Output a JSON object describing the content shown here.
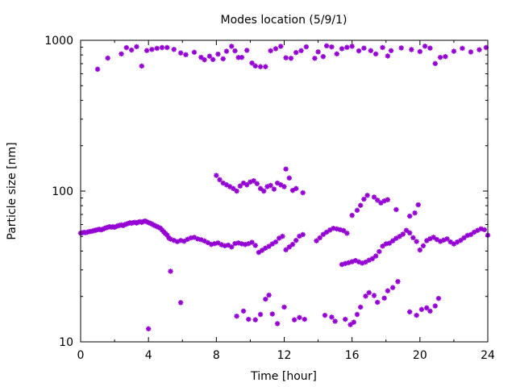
{
  "chart_data": {
    "type": "scatter",
    "title": "Modes location (5/9/1)",
    "xlabel": "Time [hour]",
    "ylabel": "Particle size [nm]",
    "xlim": [
      0,
      24
    ],
    "ylim": [
      10,
      1000
    ],
    "y_scale": "log",
    "grid": false,
    "marker": "asterisk",
    "color": "#9400d3",
    "x_ticks": [
      "0",
      "4",
      "8",
      "12",
      "16",
      "20",
      "24"
    ],
    "y_ticks": [
      "10",
      "100",
      "1000"
    ],
    "series": [
      {
        "points": [
          [
            0.0,
            52.6
          ],
          [
            0.1,
            52.9
          ],
          [
            0.2,
            53.2
          ],
          [
            0.3,
            53.0
          ],
          [
            0.4,
            53.4
          ],
          [
            0.5,
            53.8
          ],
          [
            0.6,
            54.0
          ],
          [
            0.7,
            54.3
          ],
          [
            0.8,
            54.7
          ],
          [
            0.9,
            55.1
          ],
          [
            1.0,
            55.4
          ],
          [
            1.1,
            55.8
          ],
          [
            1.2,
            55.3
          ],
          [
            1.3,
            55.8
          ],
          [
            1.4,
            56.5
          ],
          [
            1.5,
            57.1
          ],
          [
            1.6,
            57.4
          ],
          [
            1.7,
            58.0
          ],
          [
            1.8,
            57.7
          ],
          [
            1.9,
            57.9
          ],
          [
            2.0,
            57.5
          ],
          [
            2.1,
            58.2
          ],
          [
            2.2,
            58.9
          ],
          [
            2.3,
            59.2
          ],
          [
            2.4,
            59.7
          ],
          [
            2.5,
            59.0
          ],
          [
            2.6,
            59.9
          ],
          [
            2.7,
            60.4
          ],
          [
            2.8,
            61.0
          ],
          [
            2.9,
            61.6
          ],
          [
            3.0,
            61.2
          ],
          [
            3.1,
            61.8
          ],
          [
            3.2,
            62.0
          ],
          [
            3.3,
            61.4
          ],
          [
            3.4,
            62.3
          ],
          [
            3.5,
            62.7
          ],
          [
            3.6,
            62.0
          ],
          [
            3.7,
            62.9
          ],
          [
            3.8,
            63.3
          ],
          [
            3.9,
            62.6
          ],
          [
            4.0,
            61.8
          ],
          [
            4.1,
            61.2
          ],
          [
            4.2,
            60.5
          ],
          [
            4.3,
            59.6
          ],
          [
            4.4,
            58.8
          ],
          [
            4.5,
            58.2
          ],
          [
            4.6,
            57.4
          ],
          [
            4.7,
            56.8
          ],
          [
            4.8,
            55.2
          ],
          [
            4.9,
            53.7
          ],
          [
            5.0,
            52.3
          ],
          [
            5.1,
            51.0
          ],
          [
            5.2,
            48.9
          ],
          [
            5.3,
            48.0
          ],
          [
            5.5,
            47.1
          ],
          [
            5.7,
            46.2
          ],
          [
            5.9,
            47.0
          ],
          [
            6.1,
            46.5
          ],
          [
            6.3,
            47.9
          ],
          [
            6.5,
            48.9
          ],
          [
            6.7,
            49.3
          ],
          [
            6.9,
            48.2
          ],
          [
            7.1,
            47.6
          ],
          [
            7.3,
            46.7
          ],
          [
            7.5,
            45.5
          ],
          [
            7.7,
            44.3
          ],
          [
            7.9,
            44.8
          ],
          [
            8.1,
            45.3
          ],
          [
            8.3,
            44.1
          ],
          [
            8.5,
            43.4
          ],
          [
            8.7,
            43.8
          ],
          [
            8.9,
            42.6
          ],
          [
            9.1,
            44.9
          ],
          [
            9.3,
            45.3
          ],
          [
            9.5,
            44.7
          ],
          [
            9.7,
            44.2
          ],
          [
            9.9,
            44.8
          ],
          [
            10.1,
            45.7
          ],
          [
            10.3,
            43.6
          ],
          [
            10.5,
            39.2
          ],
          [
            10.7,
            40.5
          ],
          [
            10.9,
            41.9
          ],
          [
            11.1,
            43.0
          ],
          [
            11.3,
            44.6
          ],
          [
            11.5,
            46.0
          ],
          [
            11.7,
            48.7
          ],
          [
            11.9,
            50.1
          ],
          [
            12.1,
            40.8
          ],
          [
            12.3,
            42.6
          ],
          [
            12.5,
            44.3
          ],
          [
            12.7,
            47.1
          ],
          [
            12.9,
            50.2
          ],
          [
            13.1,
            51.5
          ],
          [
            13.9,
            46.8
          ],
          [
            14.1,
            49.0
          ],
          [
            14.3,
            51.6
          ],
          [
            14.5,
            53.4
          ],
          [
            14.7,
            55.2
          ],
          [
            14.9,
            56.6
          ],
          [
            15.1,
            56.1
          ],
          [
            15.3,
            55.4
          ],
          [
            15.5,
            54.7
          ],
          [
            15.7,
            52.5
          ],
          [
            15.4,
            32.6
          ],
          [
            15.6,
            33.1
          ],
          [
            15.8,
            33.5
          ],
          [
            16.0,
            34.0
          ],
          [
            16.2,
            34.6
          ],
          [
            16.4,
            33.9
          ],
          [
            16.6,
            33.3
          ],
          [
            16.8,
            33.8
          ],
          [
            17.0,
            34.8
          ],
          [
            17.2,
            35.6
          ],
          [
            17.4,
            37.1
          ],
          [
            17.6,
            39.7
          ],
          [
            17.8,
            43.1
          ],
          [
            18.0,
            44.7
          ],
          [
            18.2,
            45.1
          ],
          [
            18.4,
            46.8
          ],
          [
            18.6,
            48.6
          ],
          [
            18.8,
            50.0
          ],
          [
            19.0,
            51.8
          ],
          [
            19.2,
            54.9
          ],
          [
            19.4,
            52.8
          ],
          [
            19.6,
            49.1
          ],
          [
            19.8,
            46.3
          ],
          [
            20.0,
            40.7
          ],
          [
            20.2,
            43.4
          ],
          [
            20.4,
            46.9
          ],
          [
            20.6,
            48.3
          ],
          [
            20.8,
            49.4
          ],
          [
            21.0,
            47.7
          ],
          [
            21.2,
            46.4
          ],
          [
            21.4,
            47.3
          ],
          [
            21.6,
            48.2
          ],
          [
            21.8,
            46.0
          ],
          [
            22.0,
            44.6
          ],
          [
            22.2,
            45.9
          ],
          [
            22.4,
            47.1
          ],
          [
            22.6,
            49.0
          ],
          [
            22.8,
            50.8
          ],
          [
            23.0,
            51.5
          ],
          [
            23.2,
            53.4
          ],
          [
            23.4,
            54.9
          ],
          [
            23.6,
            56.2
          ],
          [
            23.8,
            55.4
          ],
          [
            24.0,
            51.0
          ],
          [
            16.0,
            69.0
          ],
          [
            16.3,
            74.6
          ],
          [
            16.5,
            80.4
          ],
          [
            16.7,
            88.3
          ],
          [
            16.9,
            93.7
          ],
          [
            17.3,
            91.2
          ],
          [
            17.5,
            87.0
          ],
          [
            17.7,
            83.5
          ],
          [
            17.9,
            86.1
          ],
          [
            18.1,
            87.7
          ],
          [
            18.6,
            75.4
          ],
          [
            19.4,
            68.2
          ],
          [
            19.7,
            71.6
          ],
          [
            19.9,
            81.1
          ],
          [
            8.0,
            127
          ],
          [
            8.2,
            119
          ],
          [
            8.4,
            113
          ],
          [
            8.6,
            110
          ],
          [
            8.8,
            107
          ],
          [
            9.0,
            104
          ],
          [
            9.2,
            100
          ],
          [
            9.4,
            108
          ],
          [
            9.6,
            113
          ],
          [
            9.8,
            110
          ],
          [
            10.0,
            115
          ],
          [
            10.2,
            117
          ],
          [
            10.4,
            112
          ],
          [
            10.6,
            104
          ],
          [
            10.8,
            100
          ],
          [
            11.0,
            107
          ],
          [
            11.2,
            109
          ],
          [
            11.4,
            103
          ],
          [
            11.6,
            113
          ],
          [
            11.8,
            110
          ],
          [
            12.0,
            107
          ],
          [
            12.1,
            140
          ],
          [
            12.3,
            122
          ],
          [
            12.5,
            101
          ],
          [
            12.7,
            104
          ],
          [
            13.1,
            97.5
          ],
          [
            1.0,
            643
          ],
          [
            1.6,
            762
          ],
          [
            2.4,
            813
          ],
          [
            2.7,
            894
          ],
          [
            3.0,
            862
          ],
          [
            3.3,
            907
          ],
          [
            3.6,
            675
          ],
          [
            3.9,
            855
          ],
          [
            4.2,
            870
          ],
          [
            4.5,
            885
          ],
          [
            4.8,
            895
          ],
          [
            5.1,
            896
          ],
          [
            5.5,
            870
          ],
          [
            5.9,
            824
          ],
          [
            6.2,
            803
          ],
          [
            6.7,
            833
          ],
          [
            7.1,
            771
          ],
          [
            7.3,
            743
          ],
          [
            7.6,
            785
          ],
          [
            7.8,
            746
          ],
          [
            8.1,
            810
          ],
          [
            8.4,
            754
          ],
          [
            8.6,
            846
          ],
          [
            8.9,
            912
          ],
          [
            9.1,
            851
          ],
          [
            9.3,
            769
          ],
          [
            9.5,
            770
          ],
          [
            9.8,
            858
          ],
          [
            10.1,
            707
          ],
          [
            10.3,
            676
          ],
          [
            10.6,
            669
          ],
          [
            10.9,
            669
          ],
          [
            11.2,
            853
          ],
          [
            11.5,
            879
          ],
          [
            11.8,
            913
          ],
          [
            12.1,
            766
          ],
          [
            12.4,
            760
          ],
          [
            12.7,
            829
          ],
          [
            13.0,
            854
          ],
          [
            13.3,
            906
          ],
          [
            13.8,
            760
          ],
          [
            14.0,
            838
          ],
          [
            14.3,
            780
          ],
          [
            14.5,
            919
          ],
          [
            14.8,
            904
          ],
          [
            15.1,
            813
          ],
          [
            15.4,
            879
          ],
          [
            15.7,
            898
          ],
          [
            16.0,
            912
          ],
          [
            16.4,
            851
          ],
          [
            16.7,
            888
          ],
          [
            17.1,
            854
          ],
          [
            17.4,
            812
          ],
          [
            17.8,
            896
          ],
          [
            18.1,
            787
          ],
          [
            18.3,
            854
          ],
          [
            18.9,
            890
          ],
          [
            19.5,
            868
          ],
          [
            20.0,
            842
          ],
          [
            20.3,
            914
          ],
          [
            20.6,
            888
          ],
          [
            20.9,
            701
          ],
          [
            21.2,
            770
          ],
          [
            21.5,
            780
          ],
          [
            22.0,
            846
          ],
          [
            22.5,
            885
          ],
          [
            23.0,
            837
          ],
          [
            23.5,
            866
          ],
          [
            23.9,
            895
          ],
          [
            4.0,
            12.2
          ],
          [
            5.3,
            29.4
          ],
          [
            5.9,
            18.2
          ],
          [
            9.2,
            14.8
          ],
          [
            9.6,
            16.0
          ],
          [
            9.9,
            14.1
          ],
          [
            10.3,
            14.0
          ],
          [
            10.6,
            15.2
          ],
          [
            10.9,
            19.2
          ],
          [
            11.1,
            20.4
          ],
          [
            11.3,
            15.3
          ],
          [
            11.6,
            13.2
          ],
          [
            12.0,
            17.0
          ],
          [
            12.6,
            14.0
          ],
          [
            12.9,
            14.5
          ],
          [
            13.2,
            14.1
          ],
          [
            14.4,
            15.0
          ],
          [
            14.8,
            14.6
          ],
          [
            15.0,
            13.7
          ],
          [
            15.6,
            14.1
          ],
          [
            15.9,
            13.0
          ],
          [
            16.1,
            13.5
          ],
          [
            16.3,
            15.2
          ],
          [
            16.5,
            17.0
          ],
          [
            16.8,
            20.1
          ],
          [
            17.0,
            21.2
          ],
          [
            17.3,
            20.3
          ],
          [
            17.5,
            18.3
          ],
          [
            17.9,
            19.5
          ],
          [
            18.1,
            21.8
          ],
          [
            18.4,
            22.9
          ],
          [
            18.7,
            25.1
          ],
          [
            19.4,
            15.8
          ],
          [
            19.8,
            15.0
          ],
          [
            20.1,
            16.4
          ],
          [
            20.4,
            16.8
          ],
          [
            20.6,
            16.0
          ],
          [
            20.9,
            17.3
          ],
          [
            21.1,
            19.4
          ]
        ]
      }
    ]
  }
}
